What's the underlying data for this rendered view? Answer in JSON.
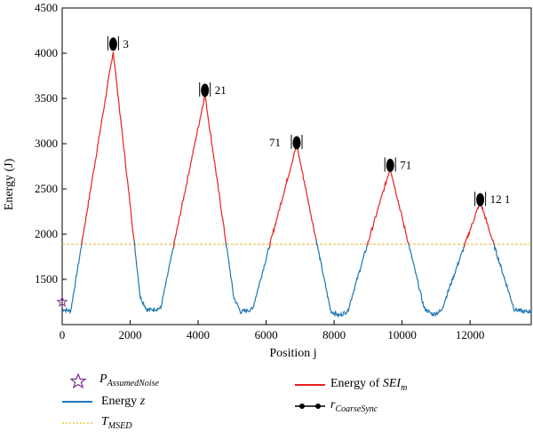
{
  "chart_data": {
    "type": "line",
    "xlabel": "Position j",
    "ylabel": "Energy (J)",
    "xlim": [
      0,
      13800
    ],
    "ylim": [
      1000,
      4500
    ],
    "x_ticks": [
      0,
      2000,
      4000,
      6000,
      8000,
      10000,
      12000
    ],
    "y_ticks": [
      1500,
      2000,
      2500,
      3000,
      3500,
      4000,
      4500
    ],
    "threshold": {
      "name": "T_MSED",
      "value": 1890
    },
    "assumed_noise_point": {
      "x": 0,
      "y": 1250
    },
    "energy_profile_keypoints": [
      {
        "x": 0,
        "y": 1170
      },
      {
        "x": 250,
        "y": 1150
      },
      {
        "x": 1500,
        "y": 4020
      },
      {
        "x": 2300,
        "y": 1300
      },
      {
        "x": 2500,
        "y": 1160
      },
      {
        "x": 2900,
        "y": 1180
      },
      {
        "x": 4200,
        "y": 3540
      },
      {
        "x": 5050,
        "y": 1300
      },
      {
        "x": 5250,
        "y": 1140
      },
      {
        "x": 5600,
        "y": 1170
      },
      {
        "x": 6900,
        "y": 2990
      },
      {
        "x": 7900,
        "y": 1150
      },
      {
        "x": 8150,
        "y": 1100
      },
      {
        "x": 8400,
        "y": 1150
      },
      {
        "x": 9650,
        "y": 2730
      },
      {
        "x": 10650,
        "y": 1180
      },
      {
        "x": 10900,
        "y": 1110
      },
      {
        "x": 11150,
        "y": 1150
      },
      {
        "x": 12300,
        "y": 2360
      },
      {
        "x": 13300,
        "y": 1170
      },
      {
        "x": 13600,
        "y": 1140
      },
      {
        "x": 13800,
        "y": 1150
      }
    ],
    "coarse_sync_peaks": [
      {
        "x": 1500,
        "y": 4100,
        "label": "3",
        "label_side": "right"
      },
      {
        "x": 4200,
        "y": 3590,
        "label": "21",
        "label_side": "right"
      },
      {
        "x": 6900,
        "y": 3010,
        "label": "71",
        "label_side": "left"
      },
      {
        "x": 9650,
        "y": 2760,
        "label": "71",
        "label_side": "right"
      },
      {
        "x": 12300,
        "y": 2380,
        "label": "12 1",
        "label_side": "right"
      }
    ],
    "colors": {
      "energy_z": "#1f77b4",
      "energy_sei": "#e8231f",
      "threshold": "#f0b429",
      "assumed_noise": "#7b2e8e",
      "coarse_sync": "#000000"
    },
    "legend": {
      "assumed_noise": {
        "symbol": "P",
        "sub": "AssumedNoise"
      },
      "energy_z": {
        "text": "Energy ",
        "italic": "z"
      },
      "threshold": {
        "symbol": "T",
        "sub": "MSED"
      },
      "energy_sei": {
        "text": "Energy of ",
        "italic": "SEI",
        "sub": "m"
      },
      "coarse_sync": {
        "symbol": "r",
        "sub": "CoarseSync"
      }
    }
  }
}
